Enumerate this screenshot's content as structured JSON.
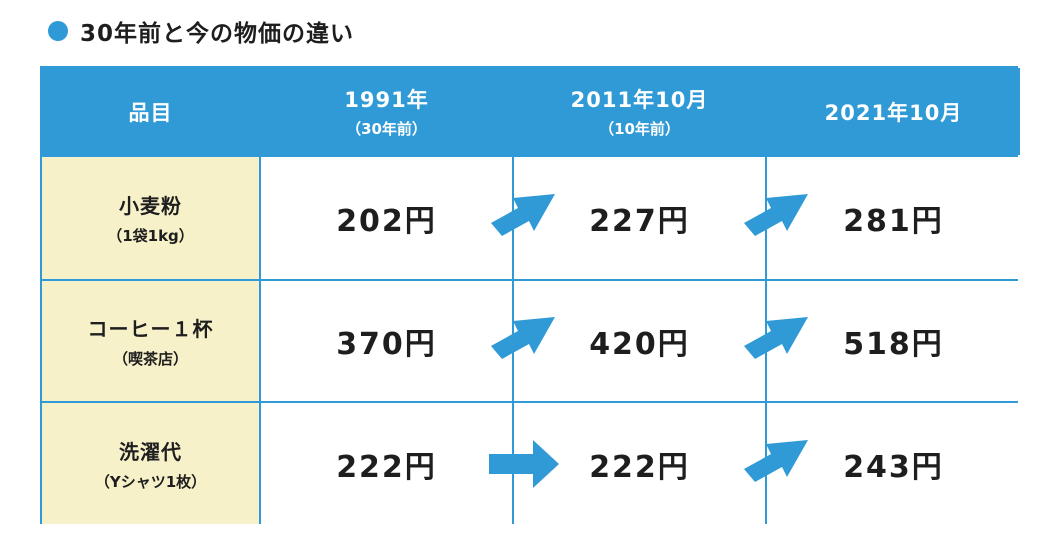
{
  "title": "30年前と今の物価の違い",
  "colors": {
    "accent": "#2f9ad6",
    "item_bg": "#f7f1c9"
  },
  "chart_data": {
    "type": "table",
    "columns": [
      {
        "label": "品目",
        "sub": ""
      },
      {
        "label": "1991年",
        "sub": "（30年前）"
      },
      {
        "label": "2011年10月",
        "sub": "（10年前）"
      },
      {
        "label": "2021年10月",
        "sub": ""
      }
    ],
    "rows": [
      {
        "name": "小麦粉",
        "note": "（1袋1kg）",
        "prices": [
          "202円",
          "227円",
          "281円"
        ],
        "values": [
          202,
          227,
          281
        ],
        "arrows": [
          "up-right-arrow-icon",
          "up-right-arrow-icon"
        ]
      },
      {
        "name": "コーヒー１杯",
        "note": "（喫茶店）",
        "prices": [
          "370円",
          "420円",
          "518円"
        ],
        "values": [
          370,
          420,
          518
        ],
        "arrows": [
          "up-right-arrow-icon",
          "up-right-arrow-icon"
        ]
      },
      {
        "name": "洗濯代",
        "note": "（Yシャツ1枚）",
        "prices": [
          "222円",
          "222円",
          "243円"
        ],
        "values": [
          222,
          222,
          243
        ],
        "arrows": [
          "right-arrow-icon",
          "up-right-arrow-icon"
        ]
      }
    ]
  }
}
